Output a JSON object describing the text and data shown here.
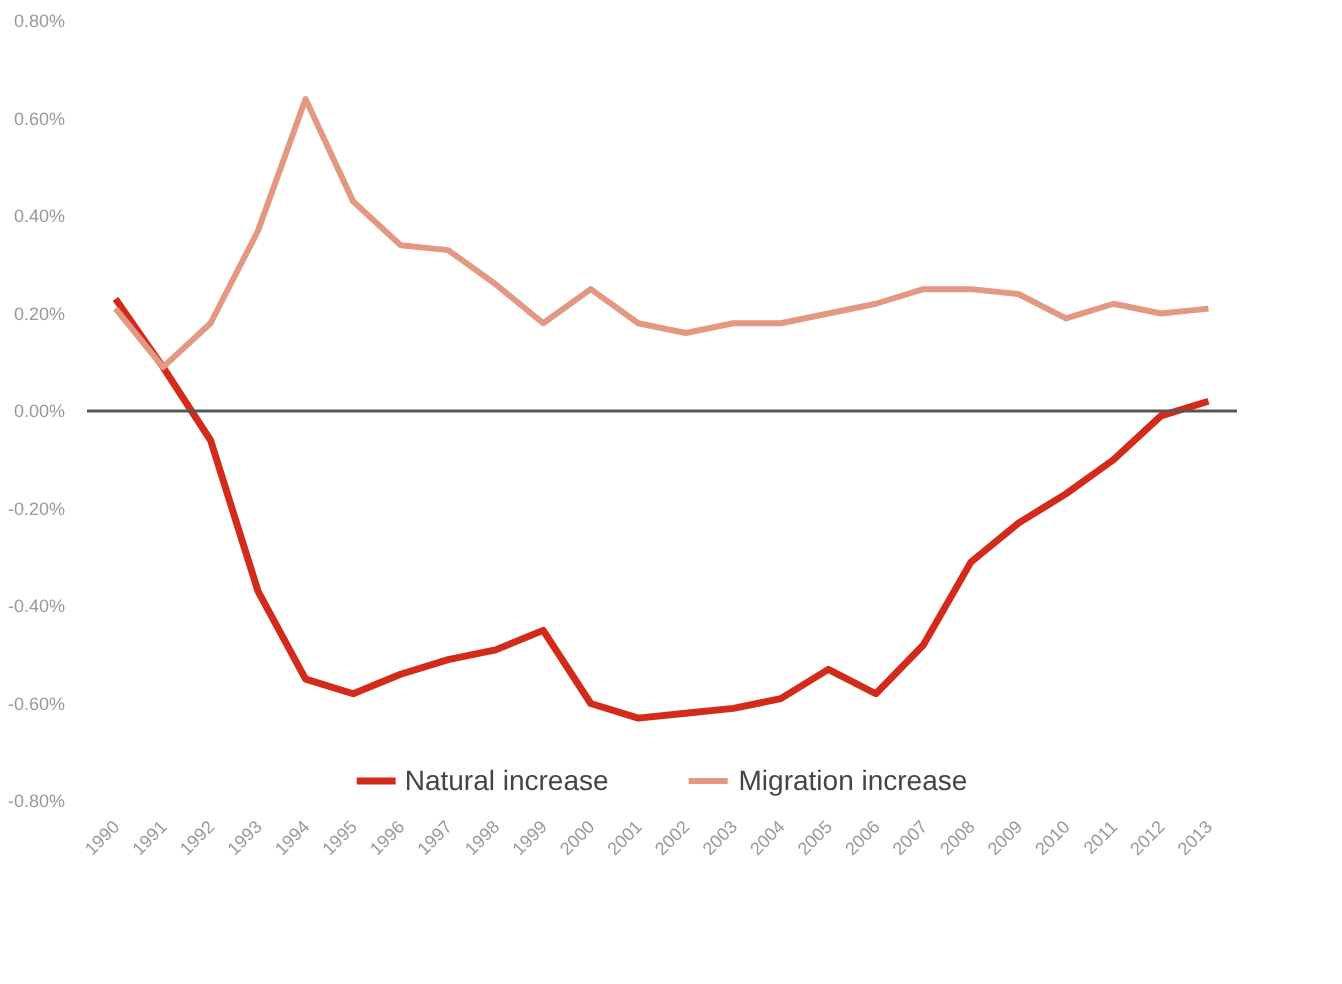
{
  "chart_data": {
    "type": "line",
    "x": [
      1990,
      1991,
      1992,
      1993,
      1994,
      1995,
      1996,
      1997,
      1998,
      1999,
      2000,
      2001,
      2002,
      2003,
      2004,
      2005,
      2006,
      2007,
      2008,
      2009,
      2010,
      2011,
      2012,
      2013
    ],
    "xticks": [
      1990,
      1991,
      1992,
      1993,
      1994,
      1995,
      1996,
      1997,
      1998,
      1999,
      2000,
      2001,
      2002,
      2003,
      2004,
      2005,
      2006,
      2007,
      2008,
      2009,
      2010,
      2011,
      2012,
      2013
    ],
    "xlim": [
      1989.4,
      2013.6
    ],
    "series": [
      {
        "name": "Natural increase",
        "color": "#d42a1a",
        "values": [
          0.23,
          0.09,
          -0.06,
          -0.37,
          -0.55,
          -0.58,
          -0.54,
          -0.51,
          -0.49,
          -0.45,
          -0.6,
          -0.63,
          -0.62,
          -0.61,
          -0.59,
          -0.53,
          -0.58,
          -0.48,
          -0.31,
          -0.23,
          -0.17,
          -0.1,
          -0.01,
          0.02
        ]
      },
      {
        "name": "Migration increase",
        "color": "#e39882",
        "values": [
          0.21,
          0.09,
          0.18,
          0.37,
          0.64,
          0.43,
          0.34,
          0.33,
          0.26,
          0.18,
          0.25,
          0.18,
          0.16,
          0.18,
          0.18,
          0.2,
          0.22,
          0.25,
          0.25,
          0.24,
          0.19,
          0.22,
          0.2,
          0.21
        ]
      }
    ],
    "ylim": [
      -0.8,
      0.8
    ],
    "yticks": [
      {
        "value": -0.8,
        "label": "-0.80%"
      },
      {
        "value": -0.6,
        "label": "-0.60%"
      },
      {
        "value": -0.4,
        "label": "-0.40%"
      },
      {
        "value": -0.2,
        "label": "-0.20%"
      },
      {
        "value": 0,
        "label": "0.00%"
      },
      {
        "value": 0.2,
        "label": "0.20%"
      },
      {
        "value": 0.4,
        "label": "0.40%"
      },
      {
        "value": 0.6,
        "label": "0.60%"
      },
      {
        "value": 0.8,
        "label": "0.80%"
      }
    ],
    "ref_lines": [
      {
        "axis": "y",
        "value": 0,
        "color": "#555555"
      }
    ],
    "grid": false,
    "legend": "bottom",
    "marker": "none",
    "line_style": "solid"
  }
}
